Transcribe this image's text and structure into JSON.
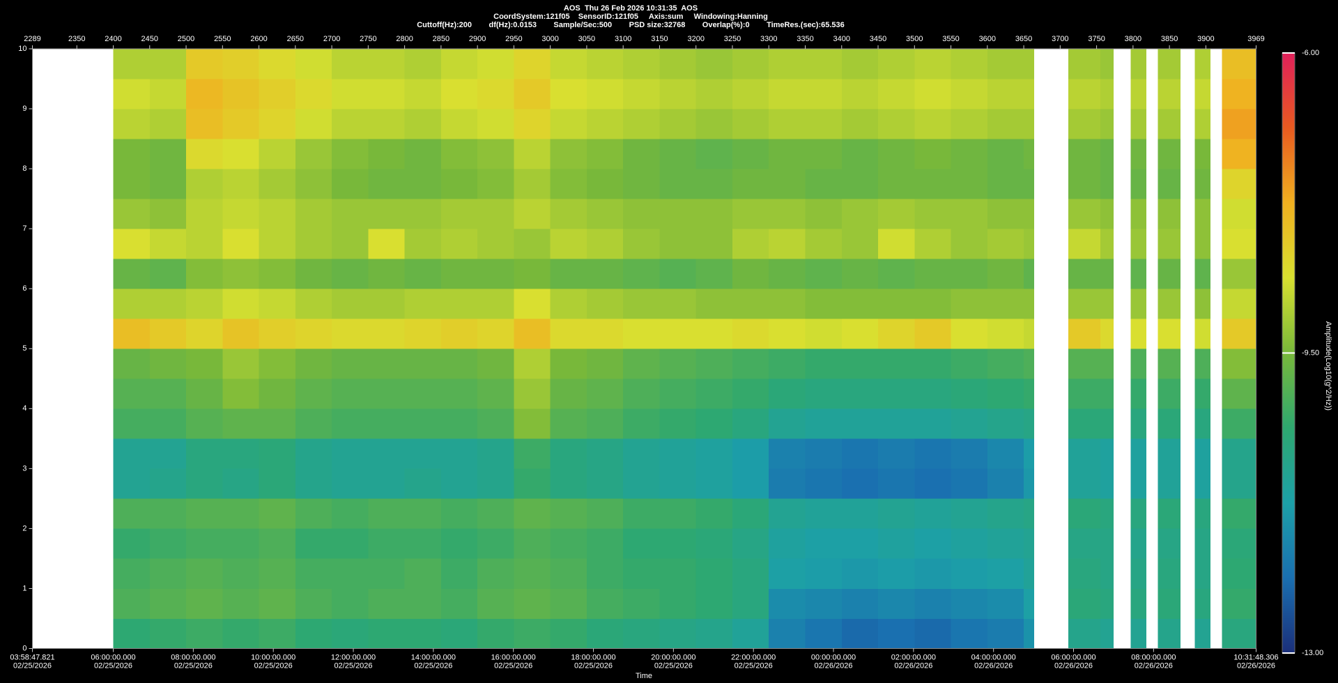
{
  "chart_data": {
    "type": "spectrogram",
    "title": "AOS  Thu 26 Feb 2026 10:31:35  AOS",
    "subtitle": [
      "CoordSystem:121f05    SensorID:121f05     Axis:sum     Windowing:Hanning",
      "Cuttoff(Hz):200        df(Hz):0.0153        Sample/Sec:500        PSD size:32768        Overlap(%):0        TimeRes.(sec):65.536"
    ],
    "x_label": "Time",
    "colorbar_label": "Amplitude(Log10(g^2/Hz))",
    "xlim": [
      2289,
      3969
    ],
    "xticks": [
      2289,
      2350,
      2400,
      2450,
      2500,
      2550,
      2600,
      2650,
      2700,
      2750,
      2800,
      2850,
      2900,
      2950,
      3000,
      3050,
      3100,
      3150,
      3200,
      3250,
      3300,
      3350,
      3400,
      3450,
      3500,
      3550,
      3600,
      3650,
      3700,
      3750,
      3800,
      3850,
      3900,
      3969
    ],
    "time_ticks": [
      {
        "value": 2289,
        "label": [
          "03:58:47.821",
          "02/25/2026"
        ]
      },
      {
        "value": 2400,
        "label": [
          "06:00:00.000",
          "02/25/2026"
        ]
      },
      {
        "value": 2509.86,
        "label": [
          "08:00:00.000",
          "02/25/2026"
        ]
      },
      {
        "value": 2619.73,
        "label": [
          "10:00:00.000",
          "02/25/2026"
        ]
      },
      {
        "value": 2729.59,
        "label": [
          "12:00:00.000",
          "02/25/2026"
        ]
      },
      {
        "value": 2839.45,
        "label": [
          "14:00:00.000",
          "02/25/2026"
        ]
      },
      {
        "value": 2949.31,
        "label": [
          "16:00:00.000",
          "02/25/2026"
        ]
      },
      {
        "value": 3059.18,
        "label": [
          "18:00:00.000",
          "02/25/2026"
        ]
      },
      {
        "value": 3169.04,
        "label": [
          "20:00:00.000",
          "02/25/2026"
        ]
      },
      {
        "value": 3278.9,
        "label": [
          "22:00:00.000",
          "02/25/2026"
        ]
      },
      {
        "value": 3388.76,
        "label": [
          "00:00:00.000",
          "02/26/2026"
        ]
      },
      {
        "value": 3498.63,
        "label": [
          "02:00:00.000",
          "02/26/2026"
        ]
      },
      {
        "value": 3608.49,
        "label": [
          "04:00:00.000",
          "02/26/2026"
        ]
      },
      {
        "value": 3718.35,
        "label": [
          "06:00:00.000",
          "02/26/2026"
        ]
      },
      {
        "value": 3828.21,
        "label": [
          "08:00:00.000",
          "02/26/2026"
        ]
      },
      {
        "value": 3969,
        "label": [
          "10:31:48.306",
          "02/26/2026"
        ]
      }
    ],
    "ylim": [
      0,
      10
    ],
    "yticks": [
      0,
      1,
      2,
      3,
      4,
      5,
      6,
      7,
      8,
      9,
      10
    ],
    "zlim": [
      -13,
      -6
    ],
    "zticks": [
      {
        "value": -6,
        "label": "-6.00"
      },
      {
        "value": -9.5,
        "label": "-9.50"
      },
      {
        "value": -13,
        "label": "-13.00"
      }
    ],
    "colormap": [
      "#1b2f7a",
      "#1a6fb0",
      "#1ca0a8",
      "#2ea870",
      "#78b83a",
      "#d8e030",
      "#f0b020",
      "#e85a20",
      "#e0205a"
    ],
    "x_edges": [
      2289,
      2400,
      2450,
      2500,
      2550,
      2600,
      2650,
      2700,
      2750,
      2800,
      2850,
      2900,
      2950,
      3000,
      3050,
      3100,
      3150,
      3200,
      3250,
      3300,
      3350,
      3400,
      3450,
      3500,
      3550,
      3600,
      3650,
      3664,
      3711,
      3755,
      3773,
      3797,
      3818,
      3834,
      3865,
      3885,
      3906,
      3922,
      3969
    ],
    "y_edges": [
      0,
      0.5,
      1,
      1.5,
      2,
      2.5,
      3,
      3.5,
      4,
      4.5,
      5,
      5.5,
      6,
      6.5,
      7,
      7.5,
      8,
      8.5,
      9,
      9.5,
      10
    ],
    "values": [
      [
        null,
        -10.4,
        -10.3,
        -10.2,
        -10.3,
        -10.2,
        -10.4,
        -10.5,
        -10.4,
        -10.4,
        -10.5,
        -10.3,
        -10.2,
        -10.3,
        -10.5,
        -10.6,
        -10.7,
        -10.8,
        -11.0,
        -11.8,
        -12.0,
        -12.2,
        -12.1,
        -12.2,
        -12.0,
        -11.9,
        -11.5,
        null,
        -10.8,
        -10.9,
        null,
        -10.9,
        null,
        -10.8,
        null,
        -10.9,
        null,
        -10.6
      ],
      [
        null,
        -10.0,
        -9.9,
        -9.8,
        -9.9,
        -9.8,
        -10.0,
        -10.1,
        -10.0,
        -10.0,
        -10.1,
        -9.9,
        -9.8,
        -9.9,
        -10.1,
        -10.2,
        -10.3,
        -10.4,
        -10.6,
        -11.6,
        -11.7,
        -11.8,
        -11.7,
        -11.8,
        -11.7,
        -11.6,
        -11.2,
        null,
        -10.5,
        -10.6,
        null,
        -10.6,
        null,
        -10.5,
        null,
        -10.6,
        null,
        -10.3
      ],
      [
        null,
        -10.1,
        -10.0,
        -9.9,
        -10.0,
        -9.9,
        -10.1,
        -10.1,
        -10.1,
        -10.0,
        -10.2,
        -10.0,
        -9.9,
        -10.0,
        -10.2,
        -10.3,
        -10.3,
        -10.4,
        -10.6,
        -11.2,
        -11.3,
        -11.4,
        -11.3,
        -11.4,
        -11.3,
        -11.2,
        -11.0,
        null,
        -10.6,
        -10.7,
        null,
        -10.7,
        null,
        -10.6,
        null,
        -10.7,
        null,
        -10.4
      ],
      [
        null,
        -10.3,
        -10.2,
        -10.1,
        -10.1,
        -10.0,
        -10.3,
        -10.3,
        -10.2,
        -10.2,
        -10.3,
        -10.2,
        -10.0,
        -10.1,
        -10.2,
        -10.4,
        -10.4,
        -10.5,
        -10.7,
        -11.1,
        -11.2,
        -11.2,
        -11.1,
        -11.2,
        -11.1,
        -11.0,
        -10.9,
        null,
        -10.7,
        -10.7,
        null,
        -10.8,
        null,
        -10.7,
        null,
        -10.7,
        null,
        -10.5
      ],
      [
        null,
        -10.0,
        -10.0,
        -9.9,
        -9.9,
        -9.8,
        -10.0,
        -10.1,
        -10.0,
        -10.0,
        -10.1,
        -10.0,
        -9.8,
        -9.9,
        -10.0,
        -10.2,
        -10.2,
        -10.3,
        -10.5,
        -10.9,
        -11.0,
        -11.0,
        -10.9,
        -11.0,
        -10.9,
        -10.8,
        -10.7,
        null,
        -10.5,
        -10.6,
        null,
        -10.6,
        null,
        -10.5,
        null,
        -10.6,
        null,
        -10.3
      ],
      [
        null,
        -10.9,
        -10.8,
        -10.6,
        -10.7,
        -10.5,
        -10.8,
        -10.9,
        -10.9,
        -10.8,
        -10.9,
        -10.8,
        -10.3,
        -10.6,
        -10.7,
        -10.9,
        -11.0,
        -11.1,
        -11.3,
        -11.9,
        -12.0,
        -12.1,
        -12.0,
        -12.1,
        -12.0,
        -11.8,
        -11.4,
        null,
        -11.0,
        -11.1,
        null,
        -11.1,
        null,
        -11.0,
        null,
        -11.1,
        null,
        -10.8
      ],
      [
        null,
        -10.9,
        -10.9,
        -10.6,
        -10.6,
        -10.5,
        -10.8,
        -10.9,
        -10.9,
        -10.9,
        -10.9,
        -10.8,
        -10.2,
        -10.6,
        -10.7,
        -10.9,
        -11.0,
        -11.1,
        -11.3,
        -11.8,
        -11.9,
        -12.0,
        -11.9,
        -12.0,
        -11.9,
        -11.7,
        -11.3,
        null,
        -11.0,
        -11.1,
        null,
        -11.1,
        null,
        -11.0,
        null,
        -11.1,
        null,
        -10.8
      ],
      [
        null,
        -10.1,
        -10.1,
        -9.9,
        -9.8,
        -9.8,
        -10.0,
        -10.1,
        -10.1,
        -10.1,
        -10.1,
        -10.0,
        -9.4,
        -9.9,
        -10.0,
        -10.2,
        -10.3,
        -10.4,
        -10.6,
        -10.9,
        -11.0,
        -11.0,
        -11.0,
        -11.0,
        -10.9,
        -10.8,
        -10.7,
        null,
        -10.5,
        -10.5,
        null,
        -10.6,
        null,
        -10.5,
        null,
        -10.6,
        null,
        -10.2
      ],
      [
        null,
        -9.9,
        -9.9,
        -9.7,
        -9.4,
        -9.6,
        -9.8,
        -9.9,
        -9.9,
        -9.9,
        -9.9,
        -9.8,
        -9.2,
        -9.7,
        -9.8,
        -10.0,
        -10.1,
        -10.2,
        -10.3,
        -10.5,
        -10.6,
        -10.6,
        -10.6,
        -10.6,
        -10.5,
        -10.4,
        -10.3,
        null,
        -10.2,
        -10.2,
        null,
        -10.3,
        null,
        -10.2,
        null,
        -10.3,
        null,
        -9.8
      ],
      [
        null,
        -9.7,
        -9.6,
        -9.5,
        -9.2,
        -9.4,
        -9.6,
        -9.7,
        -9.7,
        -9.7,
        -9.7,
        -9.6,
        -9.0,
        -9.5,
        -9.6,
        -9.8,
        -9.9,
        -10.0,
        -10.1,
        -10.2,
        -10.3,
        -10.3,
        -10.3,
        -10.3,
        -10.2,
        -10.1,
        -10.0,
        null,
        -9.9,
        -9.9,
        null,
        -10.0,
        null,
        -9.9,
        null,
        -10.0,
        null,
        -9.4
      ],
      [
        null,
        -8.0,
        -8.2,
        -8.4,
        -8.1,
        -8.3,
        -8.4,
        -8.5,
        -8.5,
        -8.4,
        -8.3,
        -8.4,
        -8.0,
        -8.5,
        -8.5,
        -8.6,
        -8.6,
        -8.6,
        -8.5,
        -8.6,
        -8.7,
        -8.6,
        -8.4,
        -8.2,
        -8.6,
        -8.7,
        -8.8,
        null,
        -8.2,
        -8.5,
        null,
        -8.6,
        null,
        -8.6,
        null,
        -8.7,
        null,
        -8.2
      ],
      [
        null,
        -9.0,
        -9.0,
        -8.9,
        -8.7,
        -8.8,
        -9.0,
        -9.1,
        -9.1,
        -9.0,
        -9.0,
        -9.0,
        -8.6,
        -9.0,
        -9.1,
        -9.2,
        -9.2,
        -9.3,
        -9.3,
        -9.3,
        -9.4,
        -9.4,
        -9.4,
        -9.4,
        -9.3,
        -9.3,
        -9.3,
        null,
        -9.2,
        -9.2,
        null,
        -9.2,
        null,
        -9.2,
        null,
        -9.3,
        null,
        -8.8
      ],
      [
        null,
        -9.7,
        -9.8,
        -9.4,
        -9.3,
        -9.4,
        -9.6,
        -9.7,
        -9.6,
        -9.7,
        -9.6,
        -9.6,
        -9.5,
        -9.7,
        -9.7,
        -9.8,
        -9.9,
        -9.8,
        -9.6,
        -9.7,
        -9.8,
        -9.7,
        -9.8,
        -9.7,
        -9.7,
        -9.6,
        -9.8,
        null,
        -9.7,
        -9.7,
        null,
        -9.8,
        null,
        -9.7,
        null,
        -9.8,
        null,
        -9.2
      ],
      [
        null,
        -8.6,
        -8.8,
        -8.9,
        -8.6,
        -8.9,
        -9.1,
        -9.2,
        -8.6,
        -9.1,
        -9.0,
        -9.1,
        -9.2,
        -8.9,
        -9.0,
        -9.2,
        -9.3,
        -9.3,
        -9.0,
        -8.9,
        -9.1,
        -9.2,
        -8.7,
        -9.0,
        -9.2,
        -9.1,
        -9.2,
        null,
        -8.8,
        -9.1,
        null,
        -9.2,
        null,
        -9.2,
        null,
        -9.3,
        null,
        -8.6
      ],
      [
        null,
        -9.2,
        -9.3,
        -8.9,
        -8.8,
        -8.9,
        -9.1,
        -9.2,
        -9.2,
        -9.2,
        -9.1,
        -9.1,
        -8.9,
        -9.1,
        -9.2,
        -9.3,
        -9.3,
        -9.3,
        -9.2,
        -9.2,
        -9.3,
        -9.2,
        -9.1,
        -9.2,
        -9.2,
        -9.3,
        -9.3,
        null,
        -9.2,
        -9.3,
        null,
        -9.3,
        null,
        -9.3,
        null,
        -9.3,
        null,
        -8.7
      ],
      [
        null,
        -9.5,
        -9.6,
        -9.0,
        -8.9,
        -9.1,
        -9.3,
        -9.5,
        -9.6,
        -9.6,
        -9.5,
        -9.4,
        -9.1,
        -9.4,
        -9.5,
        -9.6,
        -9.7,
        -9.7,
        -9.6,
        -9.6,
        -9.7,
        -9.7,
        -9.6,
        -9.6,
        -9.6,
        -9.7,
        -9.7,
        null,
        -9.6,
        -9.7,
        null,
        -9.7,
        null,
        -9.7,
        null,
        -9.6,
        null,
        -8.4
      ],
      [
        null,
        -9.5,
        -9.6,
        -8.5,
        -8.6,
        -8.9,
        -9.2,
        -9.4,
        -9.5,
        -9.6,
        -9.4,
        -9.3,
        -8.9,
        -9.3,
        -9.4,
        -9.6,
        -9.7,
        -9.8,
        -9.7,
        -9.6,
        -9.6,
        -9.7,
        -9.6,
        -9.5,
        -9.6,
        -9.7,
        -9.6,
        null,
        -9.6,
        -9.7,
        null,
        -9.6,
        null,
        -9.6,
        null,
        -9.5,
        null,
        -7.8
      ],
      [
        null,
        -8.9,
        -9.0,
        -8.0,
        -8.2,
        -8.4,
        -8.7,
        -8.9,
        -8.9,
        -9.0,
        -8.8,
        -8.7,
        -8.4,
        -8.8,
        -8.9,
        -9.0,
        -9.1,
        -9.2,
        -9.1,
        -9.0,
        -9.0,
        -9.1,
        -9.0,
        -8.9,
        -9.0,
        -9.1,
        -9.1,
        null,
        -9.1,
        -9.2,
        null,
        -9.1,
        null,
        -9.1,
        null,
        -9.0,
        null,
        -7.6
      ],
      [
        null,
        -8.7,
        -8.8,
        -7.9,
        -8.1,
        -8.3,
        -8.5,
        -8.7,
        -8.7,
        -8.8,
        -8.6,
        -8.5,
        -8.2,
        -8.6,
        -8.7,
        -8.8,
        -8.9,
        -9.0,
        -8.9,
        -8.8,
        -8.8,
        -8.9,
        -8.8,
        -8.7,
        -8.8,
        -8.9,
        -8.9,
        null,
        -8.9,
        -9.0,
        null,
        -8.9,
        null,
        -8.9,
        null,
        -8.8,
        null,
        -7.8
      ],
      [
        null,
        -9.0,
        -9.0,
        -8.2,
        -8.3,
        -8.5,
        -8.7,
        -8.9,
        -8.9,
        -9.0,
        -8.8,
        -8.7,
        -8.4,
        -8.8,
        -8.9,
        -9.0,
        -9.1,
        -9.2,
        -9.1,
        -9.0,
        -9.0,
        -9.1,
        -9.0,
        -8.9,
        -9.0,
        -9.1,
        -9.1,
        null,
        -9.1,
        -9.2,
        null,
        -9.1,
        null,
        -9.1,
        null,
        -9.0,
        null,
        -8.0
      ]
    ]
  }
}
